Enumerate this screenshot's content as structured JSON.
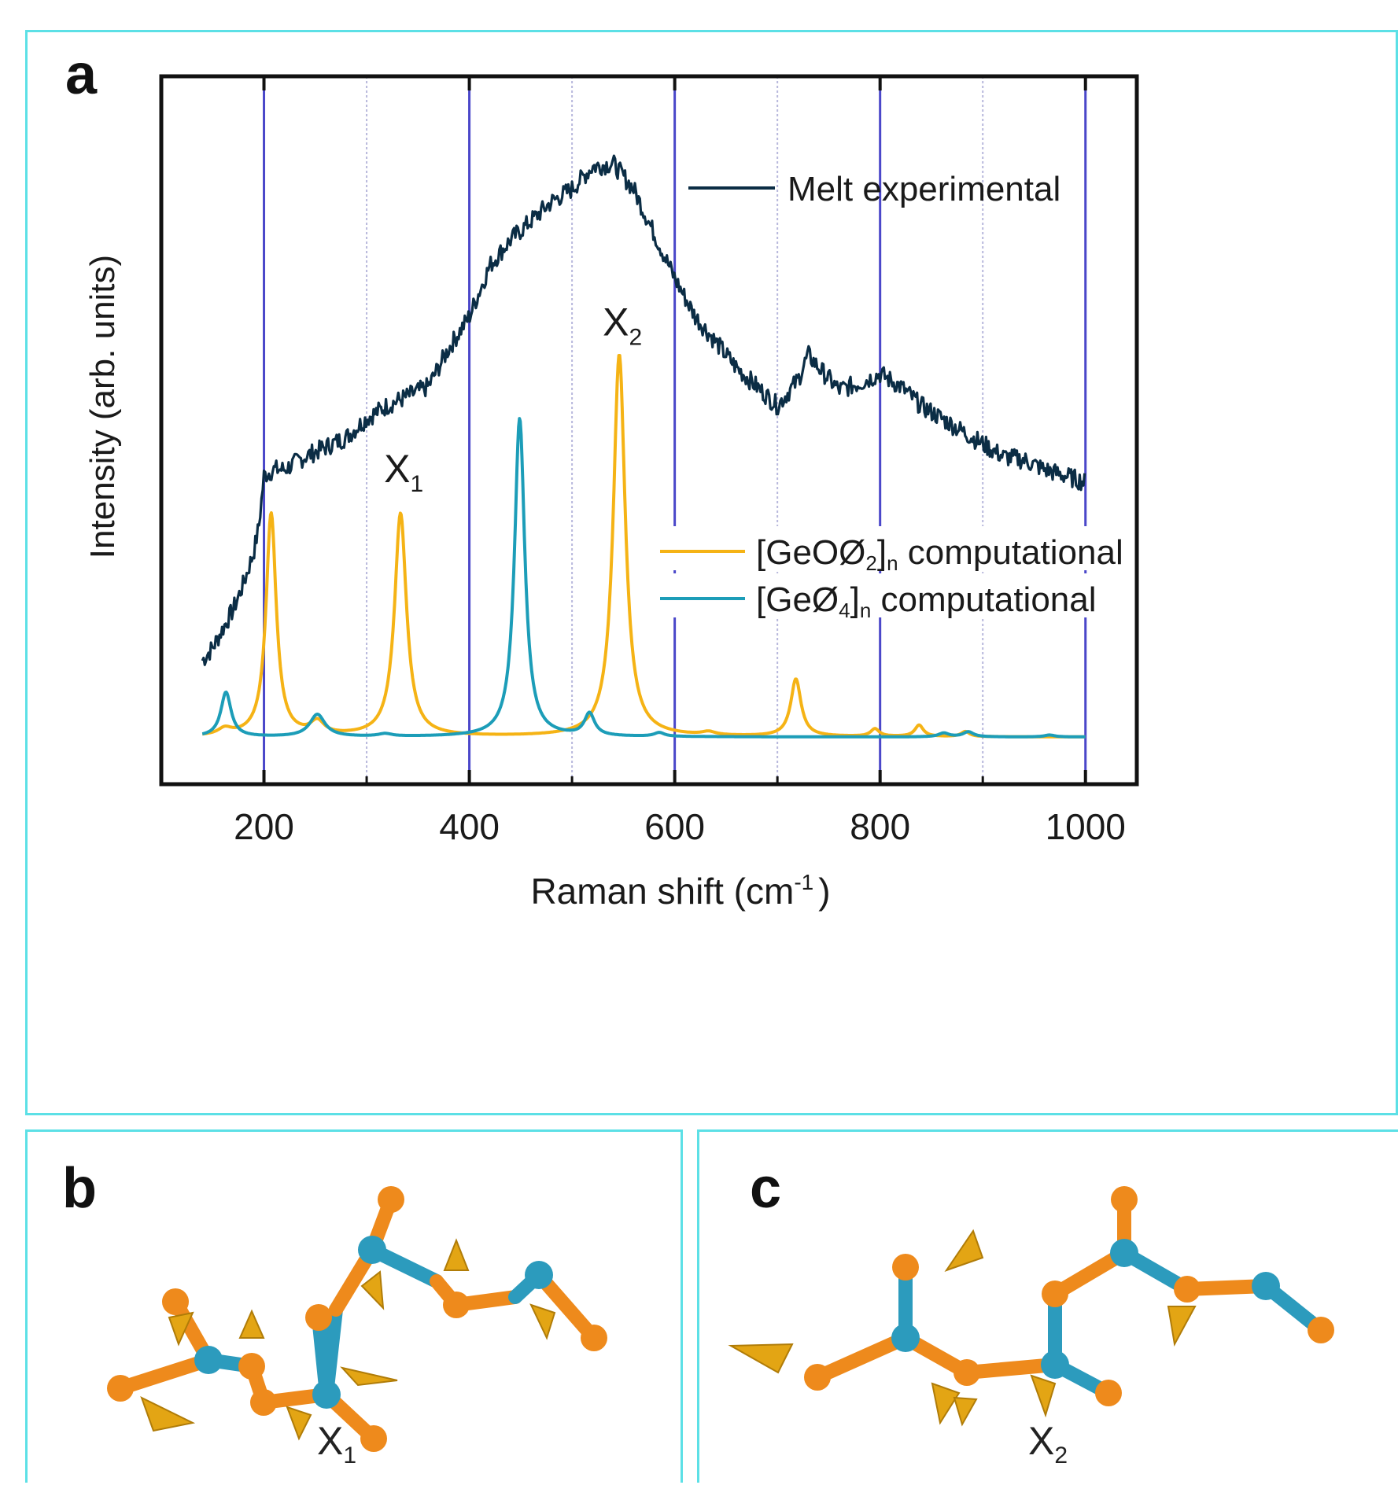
{
  "panels": {
    "a": {
      "letter": "a"
    },
    "b": {
      "letter": "b",
      "mode_label": "X",
      "mode_sub": "1"
    },
    "c": {
      "letter": "c",
      "mode_label": "X",
      "mode_sub": "2"
    }
  },
  "colors": {
    "experimental": "#0b2d45",
    "geo_o_2": "#f5b315",
    "ge_4": "#1c9db8",
    "major_grid": "#4a47c9",
    "minor_grid": "#b8b8dc",
    "panel_border": "#5ce0e6",
    "atom_ge": "#2c9bbd",
    "atom_o": "#ee8a1c",
    "arrow": "#e3a514"
  },
  "chart_data": {
    "type": "line",
    "title": "",
    "xlabel": "Raman shift (cm",
    "xlabel_sup": "-1",
    "xlabel_close": ")",
    "ylabel": "Intensity (arb. units)",
    "xlim": [
      100,
      1050
    ],
    "ylim": [
      0,
      1.0
    ],
    "xticks": [
      200,
      400,
      600,
      800,
      1000
    ],
    "xtick_labels": [
      "200",
      "400",
      "600",
      "800",
      "1000"
    ],
    "major_grid_x": [
      200,
      400,
      600,
      800,
      1000
    ],
    "minor_grid_x": [
      300,
      500,
      700,
      900
    ],
    "grid": true,
    "legend_placement": "right",
    "series": [
      {
        "name": "Melt experimental",
        "color": "#0b2d45",
        "x": [
          140,
          150,
          160,
          170,
          180,
          190,
          195,
          200,
          205,
          210,
          220,
          240,
          260,
          280,
          300,
          320,
          340,
          360,
          380,
          400,
          420,
          440,
          460,
          480,
          500,
          520,
          540,
          560,
          580,
          600,
          620,
          640,
          660,
          680,
          700,
          710,
          720,
          730,
          740,
          760,
          780,
          800,
          820,
          840,
          860,
          880,
          900,
          920,
          940,
          960,
          980,
          1000
        ],
        "y": [
          0.12,
          0.14,
          0.17,
          0.2,
          0.24,
          0.29,
          0.33,
          0.41,
          0.415,
          0.42,
          0.42,
          0.44,
          0.455,
          0.47,
          0.5,
          0.52,
          0.535,
          0.55,
          0.61,
          0.66,
          0.74,
          0.78,
          0.81,
          0.84,
          0.86,
          0.895,
          0.9,
          0.86,
          0.79,
          0.72,
          0.66,
          0.62,
          0.58,
          0.55,
          0.52,
          0.54,
          0.56,
          0.6,
          0.58,
          0.545,
          0.555,
          0.57,
          0.55,
          0.52,
          0.5,
          0.48,
          0.46,
          0.44,
          0.435,
          0.42,
          0.41,
          0.4
        ]
      },
      {
        "name": "[GeOØ₂]ₙ computational",
        "color": "#f5b315",
        "peaks": [
          {
            "x": 162,
            "h": 0.01,
            "w": 8
          },
          {
            "x": 207,
            "h": 0.35,
            "w": 6
          },
          {
            "x": 252,
            "h": 0.02,
            "w": 8
          },
          {
            "x": 333,
            "h": 0.35,
            "w": 7
          },
          {
            "x": 546,
            "h": 0.6,
            "w": 7
          },
          {
            "x": 633,
            "h": 0.005,
            "w": 8
          },
          {
            "x": 718,
            "h": 0.09,
            "w": 6
          },
          {
            "x": 795,
            "h": 0.012,
            "w": 5
          },
          {
            "x": 838,
            "h": 0.018,
            "w": 5
          },
          {
            "x": 883,
            "h": 0.008,
            "w": 5
          }
        ],
        "baseline": 0.0
      },
      {
        "name": "[GeØ₄]ₙ computational",
        "color": "#1c9db8",
        "peaks": [
          {
            "x": 163,
            "h": 0.07,
            "w": 6
          },
          {
            "x": 252,
            "h": 0.035,
            "w": 9
          },
          {
            "x": 318,
            "h": 0.004,
            "w": 8
          },
          {
            "x": 449,
            "h": 0.5,
            "w": 6
          },
          {
            "x": 517,
            "h": 0.035,
            "w": 6
          },
          {
            "x": 585,
            "h": 0.006,
            "w": 6
          },
          {
            "x": 862,
            "h": 0.006,
            "w": 6
          },
          {
            "x": 886,
            "h": 0.008,
            "w": 6
          },
          {
            "x": 965,
            "h": 0.003,
            "w": 6
          }
        ],
        "baseline": 0.0
      }
    ],
    "annotations": [
      {
        "text": "X",
        "sub": "1",
        "x": 333,
        "y": 0.4
      },
      {
        "text": "X",
        "sub": "2",
        "x": 546,
        "y": 0.63
      }
    ],
    "legend": [
      {
        "series": 0,
        "text": "Melt experimental"
      },
      {
        "series": 1,
        "text": "[GeOØ",
        "sub": "2",
        "tail": "]",
        "sub2": "n",
        "rest": " computational"
      },
      {
        "series": 2,
        "text": "[GeØ",
        "sub": "4",
        "tail": "]",
        "sub2": "n",
        "rest": " computational"
      }
    ]
  }
}
